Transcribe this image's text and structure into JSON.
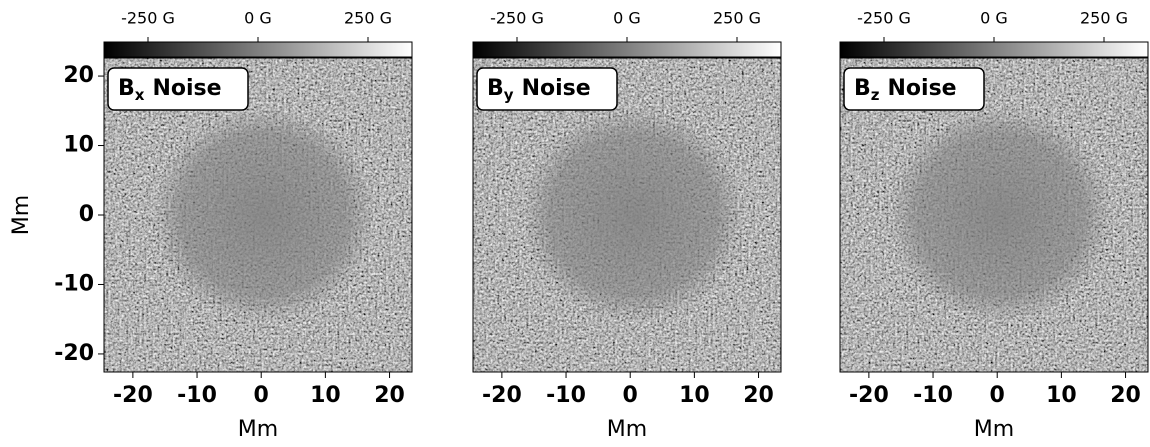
{
  "chart_data": [
    {
      "type": "image",
      "title_symbol": "B",
      "title_subscript": "x",
      "title_text": "Noise",
      "xlabel": "Mm",
      "ylabel": "Mm",
      "xlim": [
        -24.5,
        23.5
      ],
      "xticks": [
        -20,
        -10,
        0,
        10,
        20
      ],
      "ylim": [
        -22.6,
        22.6
      ],
      "yticks": [
        -20,
        -10,
        0,
        10,
        20
      ],
      "clim": [
        -350,
        350
      ],
      "cmap": "gray",
      "cticks": [
        {
          "value": -250,
          "label": "-250 G"
        },
        {
          "value": 0,
          "label": "0 G"
        },
        {
          "value": 250,
          "label": "250 G"
        }
      ]
    },
    {
      "type": "image",
      "title_symbol": "B",
      "title_subscript": "y",
      "title_text": "Noise",
      "xlabel": "Mm",
      "xlim": [
        -24.5,
        23.5
      ],
      "xticks": [
        -20,
        -10,
        0,
        10,
        20
      ],
      "ylim": [
        -22.6,
        22.6
      ],
      "clim": [
        -350,
        350
      ],
      "cmap": "gray",
      "cticks": [
        {
          "value": -250,
          "label": "-250 G"
        },
        {
          "value": 0,
          "label": "0 G"
        },
        {
          "value": 250,
          "label": "250 G"
        }
      ]
    },
    {
      "type": "image",
      "title_symbol": "B",
      "title_subscript": "z",
      "title_text": "Noise",
      "xlabel": "Mm",
      "xlim": [
        -24.5,
        23.5
      ],
      "xticks": [
        -20,
        -10,
        0,
        10,
        20
      ],
      "ylim": [
        -22.6,
        22.6
      ],
      "clim": [
        -350,
        350
      ],
      "cmap": "gray",
      "cticks": [
        {
          "value": -250,
          "label": "-250 G"
        },
        {
          "value": 0,
          "label": "0 G"
        },
        {
          "value": 250,
          "label": "250 G"
        }
      ]
    }
  ]
}
